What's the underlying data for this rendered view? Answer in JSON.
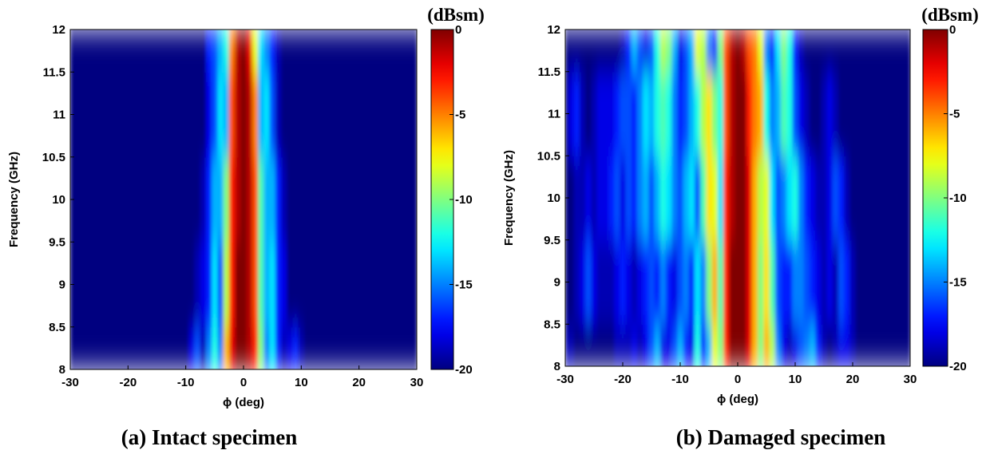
{
  "chart_data": [
    {
      "type": "heatmap",
      "caption": "(a) Intact specimen",
      "xlabel": "ϕ (deg)",
      "ylabel": "Frequency (GHz)",
      "colorbar_label": "(dBsm)",
      "colormap": "jet",
      "x": [
        -30,
        -29,
        -28,
        -27,
        -26,
        -25,
        -24,
        -23,
        -22,
        -21,
        -20,
        -19,
        -18,
        -17,
        -16,
        -15,
        -14,
        -13,
        -12,
        -11,
        -10,
        -9,
        -8,
        -7,
        -6,
        -5,
        -4,
        -3,
        -2,
        -1,
        0,
        1,
        2,
        3,
        4,
        5,
        6,
        7,
        8,
        9,
        10,
        11,
        12,
        13,
        14,
        15,
        16,
        17,
        18,
        19,
        20,
        21,
        22,
        23,
        24,
        25,
        26,
        27,
        28,
        29,
        30
      ],
      "y": [
        8,
        9,
        10,
        11,
        12
      ],
      "z": [
        [
          -20,
          -20,
          -20,
          -20,
          -20,
          -20,
          -20,
          -20,
          -20,
          -20,
          -20,
          -20,
          -20,
          -20,
          -20,
          -20,
          -20,
          -20,
          -20,
          -20,
          -20,
          -18,
          -16,
          -19,
          -15,
          -12,
          -15,
          -6,
          -2,
          0,
          0,
          -1,
          -3,
          -10,
          -15,
          -13,
          -17,
          -19,
          -18,
          -17,
          -19,
          -20,
          -20,
          -20,
          -20,
          -20,
          -20,
          -20,
          -20,
          -20,
          -20,
          -20,
          -20,
          -20,
          -20,
          -20,
          -20,
          -20,
          -20,
          -20,
          -20
        ],
        [
          -20,
          -20,
          -20,
          -20,
          -20,
          -20,
          -20,
          -20,
          -20,
          -20,
          -20,
          -20,
          -20,
          -20,
          -20,
          -20,
          -20,
          -20,
          -20,
          -20,
          -20,
          -20,
          -19,
          -18,
          -17,
          -13,
          -16,
          -9,
          -3,
          0,
          0,
          -1,
          -4,
          -11,
          -14,
          -13,
          -17,
          -18,
          -20,
          -20,
          -20,
          -20,
          -20,
          -20,
          -20,
          -20,
          -20,
          -20,
          -20,
          -20,
          -20,
          -20,
          -20,
          -20,
          -20,
          -20,
          -20,
          -20,
          -20,
          -20,
          -20
        ],
        [
          -20,
          -20,
          -20,
          -20,
          -20,
          -20,
          -20,
          -20,
          -20,
          -20,
          -20,
          -20,
          -20,
          -20,
          -20,
          -20,
          -20,
          -20,
          -20,
          -20,
          -20,
          -20,
          -20,
          -19,
          -17,
          -14,
          -14,
          -10,
          -3,
          -1,
          0,
          -1,
          -4,
          -11,
          -14,
          -14,
          -17,
          -19,
          -20,
          -20,
          -20,
          -20,
          -20,
          -20,
          -20,
          -20,
          -20,
          -20,
          -20,
          -20,
          -20,
          -20,
          -20,
          -20,
          -20,
          -20,
          -20,
          -20,
          -20,
          -20,
          -20
        ],
        [
          -20,
          -20,
          -20,
          -20,
          -20,
          -20,
          -20,
          -20,
          -20,
          -20,
          -20,
          -20,
          -20,
          -20,
          -20,
          -20,
          -20,
          -20,
          -20,
          -20,
          -20,
          -20,
          -20,
          -20,
          -18,
          -16,
          -13,
          -14,
          -4,
          -1,
          0,
          -1,
          -5,
          -14,
          -13,
          -16,
          -19,
          -20,
          -20,
          -20,
          -20,
          -20,
          -20,
          -20,
          -20,
          -20,
          -20,
          -20,
          -20,
          -20,
          -20,
          -20,
          -20,
          -20,
          -20,
          -20,
          -20,
          -20,
          -20,
          -20,
          -20
        ],
        [
          -20,
          -20,
          -20,
          -20,
          -20,
          -20,
          -20,
          -20,
          -20,
          -20,
          -20,
          -20,
          -20,
          -20,
          -20,
          -20,
          -20,
          -20,
          -20,
          -20,
          -20,
          -20,
          -20,
          -20,
          -17,
          -16,
          -14,
          -12,
          -5,
          -1,
          0,
          -2,
          -8,
          -13,
          -15,
          -17,
          -19,
          -20,
          -20,
          -20,
          -20,
          -20,
          -20,
          -20,
          -20,
          -20,
          -20,
          -20,
          -20,
          -20,
          -20,
          -20,
          -20,
          -20,
          -20,
          -20,
          -20,
          -20,
          -20,
          -20,
          -20
        ]
      ],
      "xlim": [
        -30,
        30
      ],
      "ylim": [
        8,
        12
      ],
      "xticks": [
        -30,
        -20,
        -10,
        0,
        10,
        20,
        30
      ],
      "yticks": [
        8,
        8.5,
        9,
        9.5,
        10,
        10.5,
        11,
        11.5,
        12
      ],
      "clim": [
        -20,
        0
      ],
      "cticks": [
        -20,
        -15,
        -10,
        -5,
        0
      ]
    },
    {
      "type": "heatmap",
      "caption": "(b) Damaged specimen",
      "xlabel": "ϕ (deg)",
      "ylabel": "Frequency (GHz)",
      "colorbar_label": "(dBsm)",
      "colormap": "jet",
      "x": [
        -30,
        -29,
        -28,
        -27,
        -26,
        -25,
        -24,
        -23,
        -22,
        -21,
        -20,
        -19,
        -18,
        -17,
        -16,
        -15,
        -14,
        -13,
        -12,
        -11,
        -10,
        -9,
        -8,
        -7,
        -6,
        -5,
        -4,
        -3,
        -2,
        -1,
        0,
        1,
        2,
        3,
        4,
        5,
        6,
        7,
        8,
        9,
        10,
        11,
        12,
        13,
        14,
        15,
        16,
        17,
        18,
        19,
        20,
        21,
        22,
        23,
        24,
        25,
        26,
        27,
        28,
        29,
        30
      ],
      "y": [
        8,
        9,
        10,
        11,
        12
      ],
      "z": [
        [
          -19,
          -19,
          -20,
          -20,
          -20,
          -20,
          -20,
          -20,
          -20,
          -19,
          -19,
          -19,
          -18,
          -19,
          -18,
          -16,
          -14,
          -18,
          -18,
          -16,
          -14,
          -17,
          -18,
          -12,
          -17,
          -14,
          -8,
          -10,
          -3,
          0,
          0,
          0,
          -2,
          -6,
          -10,
          -6,
          -9,
          -15,
          -18,
          -19,
          -18,
          -16,
          -15,
          -14,
          -17,
          -19,
          -20,
          -19,
          -18,
          -18,
          -19,
          -20,
          -20,
          -20,
          -20,
          -20,
          -20,
          -20,
          -20,
          -20,
          -20
        ],
        [
          -20,
          -20,
          -19,
          -18,
          -16,
          -18,
          -19,
          -19,
          -19,
          -18,
          -17,
          -18,
          -19,
          -18,
          -17,
          -16,
          -17,
          -15,
          -17,
          -18,
          -16,
          -15,
          -17,
          -13,
          -15,
          -10,
          -6,
          -11,
          -3,
          0,
          0,
          0,
          -2,
          -6,
          -10,
          -7,
          -11,
          -16,
          -17,
          -17,
          -15,
          -15,
          -16,
          -17,
          -18,
          -19,
          -18,
          -19,
          -16,
          -17,
          -19,
          -20,
          -20,
          -20,
          -20,
          -20,
          -20,
          -20,
          -20,
          -20,
          -20
        ],
        [
          -20,
          -20,
          -19,
          -19,
          -18,
          -19,
          -18,
          -18,
          -17,
          -16,
          -18,
          -16,
          -17,
          -15,
          -14,
          -16,
          -14,
          -12,
          -13,
          -15,
          -16,
          -14,
          -13,
          -16,
          -11,
          -7,
          -8,
          -13,
          -3,
          -1,
          0,
          0,
          -2,
          -6,
          -9,
          -8,
          -13,
          -16,
          -15,
          -13,
          -12,
          -15,
          -17,
          -18,
          -19,
          -19,
          -18,
          -16,
          -17,
          -19,
          -20,
          -20,
          -20,
          -20,
          -20,
          -20,
          -20,
          -20,
          -20,
          -20,
          -20
        ],
        [
          -20,
          -18,
          -17,
          -19,
          -20,
          -19,
          -18,
          -18,
          -18,
          -17,
          -16,
          -16,
          -17,
          -15,
          -13,
          -14,
          -12,
          -11,
          -12,
          -15,
          -17,
          -16,
          -14,
          -12,
          -9,
          -7,
          -10,
          -12,
          -4,
          -1,
          0,
          0,
          -3,
          -5,
          -6,
          -12,
          -15,
          -14,
          -11,
          -12,
          -16,
          -18,
          -19,
          -20,
          -20,
          -19,
          -18,
          -19,
          -20,
          -20,
          -20,
          -20,
          -20,
          -20,
          -20,
          -20,
          -20,
          -20,
          -20,
          -20,
          -20
        ],
        [
          -20,
          -20,
          -20,
          -20,
          -20,
          -20,
          -20,
          -20,
          -20,
          -20,
          -19,
          -17,
          -14,
          -16,
          -18,
          -16,
          -12,
          -9,
          -10,
          -14,
          -18,
          -16,
          -14,
          -8,
          -9,
          -15,
          -17,
          -10,
          -4,
          -1,
          0,
          -1,
          -4,
          -5,
          -8,
          -15,
          -17,
          -13,
          -10,
          -12,
          -17,
          -19,
          -20,
          -20,
          -20,
          -20,
          -20,
          -20,
          -20,
          -20,
          -20,
          -20,
          -20,
          -20,
          -20,
          -20,
          -20,
          -20,
          -20,
          -20,
          -20
        ]
      ],
      "xlim": [
        -30,
        30
      ],
      "ylim": [
        8,
        12
      ],
      "xticks": [
        -30,
        -20,
        -10,
        0,
        10,
        20,
        30
      ],
      "yticks": [
        8,
        8.5,
        9,
        9.5,
        10,
        10.5,
        11,
        11.5,
        12
      ],
      "clim": [
        -20,
        0
      ],
      "cticks": [
        -20,
        -15,
        -10,
        -5,
        0
      ]
    }
  ]
}
